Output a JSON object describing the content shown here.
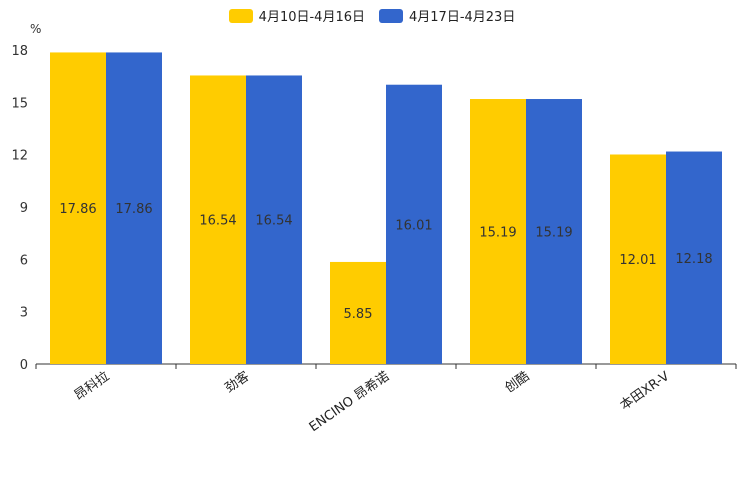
{
  "chart_data": {
    "type": "bar",
    "unit": "%",
    "categories": [
      "昂科拉",
      "劲客",
      "ENCINO 昂希诺",
      "创酷",
      "本田XR-V"
    ],
    "series": [
      {
        "name": "4月10日-4月16日",
        "color": "#ffcc00",
        "values": [
          17.86,
          16.54,
          5.85,
          15.19,
          12.01
        ]
      },
      {
        "name": "4月17日-4月23日",
        "color": "#3366cc",
        "values": [
          17.86,
          16.54,
          16.01,
          15.19,
          12.18
        ]
      }
    ],
    "yticks": [
      0,
      3,
      6,
      9,
      12,
      15,
      18
    ],
    "ylim": [
      0,
      18
    ],
    "legend_position": "top-center",
    "grid": false
  }
}
